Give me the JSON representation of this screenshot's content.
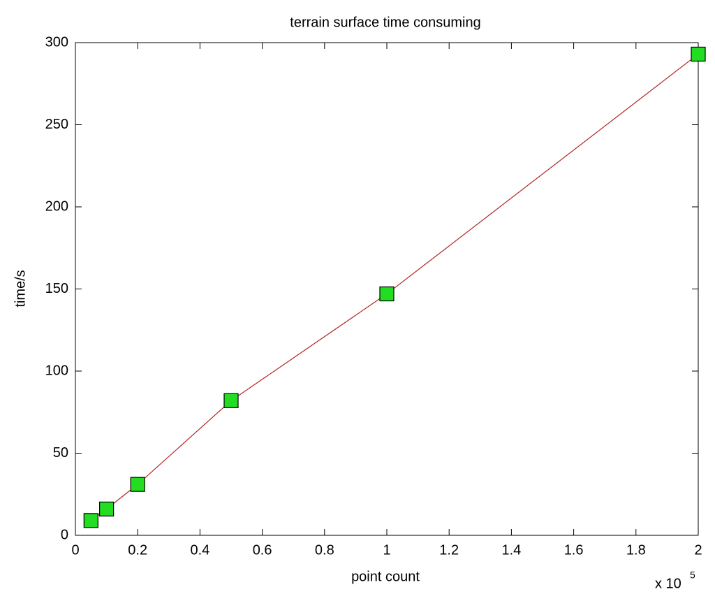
{
  "chart_data": {
    "type": "line",
    "title": "terrain surface time consuming",
    "xlabel": "point count",
    "ylabel": "time/s",
    "x_multiplier": {
      "text": "x 10",
      "exponent": "5"
    },
    "x": [
      0.05,
      0.1,
      0.2,
      0.5,
      1,
      2
    ],
    "values": [
      9,
      16,
      31,
      82,
      147,
      293
    ],
    "color": "#b22222",
    "marker": "square",
    "marker_color": "#22dd22",
    "xlim": [
      0,
      2
    ],
    "xticks": [
      0,
      0.2,
      0.4,
      0.6,
      0.8,
      1,
      1.2,
      1.4,
      1.6,
      1.8,
      2
    ],
    "ylim": [
      0,
      300
    ],
    "yticks": [
      0,
      50,
      100,
      150,
      200,
      250,
      300
    ],
    "grid": false
  }
}
